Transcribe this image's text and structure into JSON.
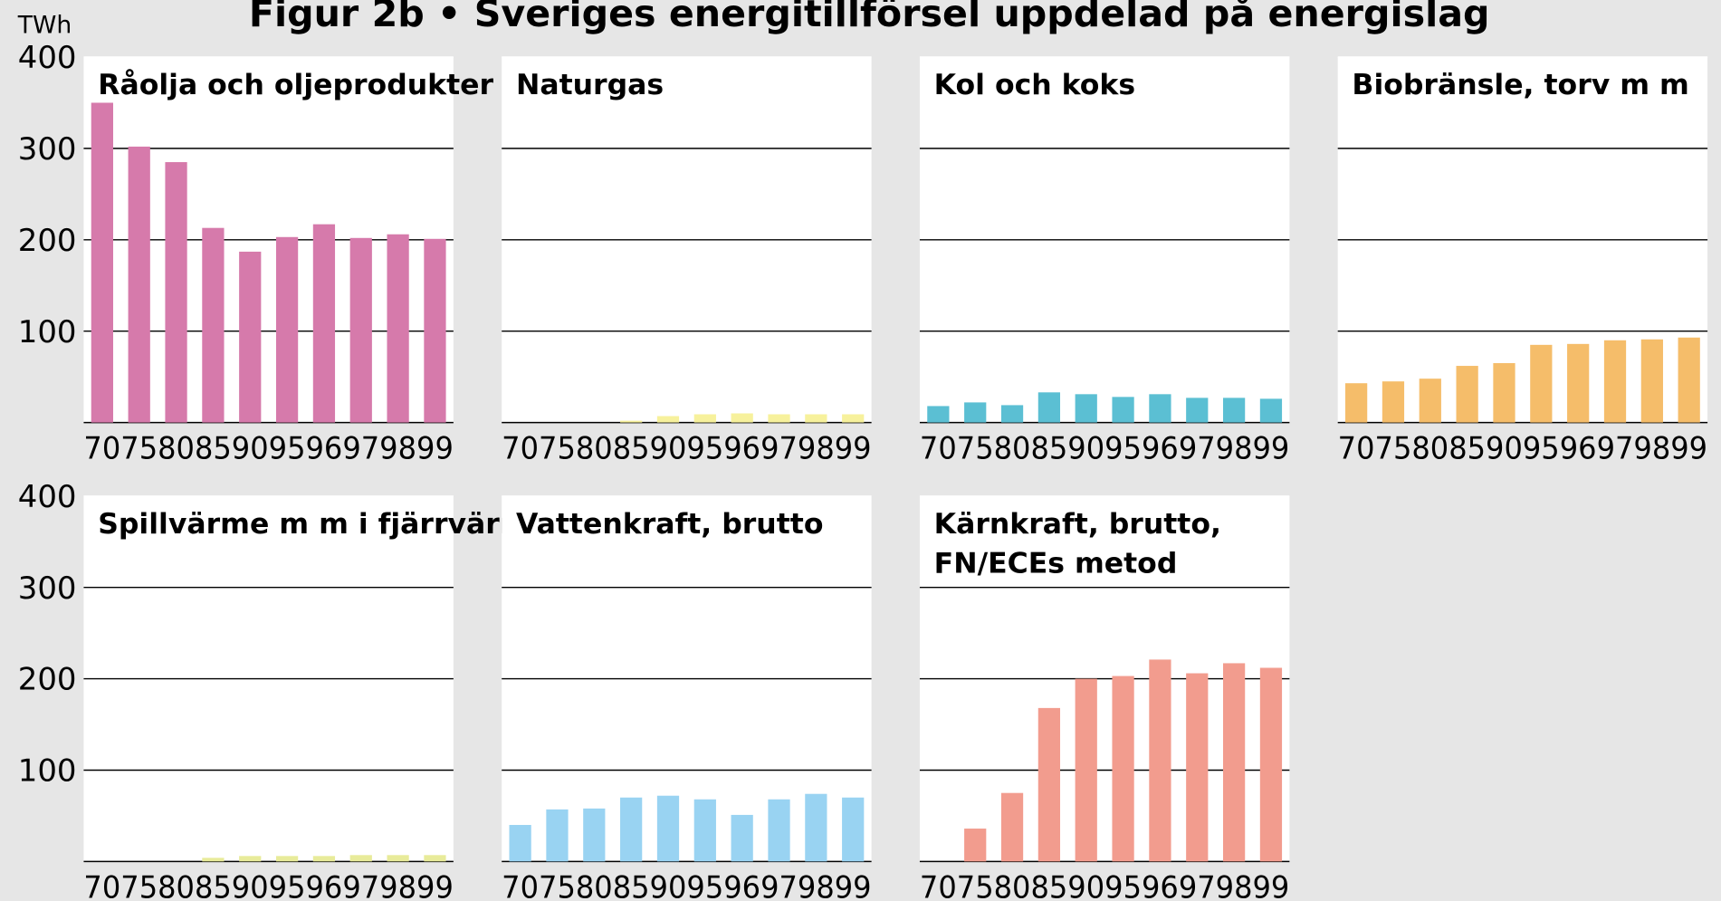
{
  "title": "Figur 2b • Sveriges energitillförsel uppdelad på energislag",
  "unit": "TWh",
  "chart_data": [
    {
      "type": "bar",
      "title": "Råolja och oljeprodukter",
      "categories": [
        "70",
        "75",
        "80",
        "85",
        "90",
        "95",
        "96",
        "97",
        "98",
        "99"
      ],
      "values": [
        350,
        302,
        285,
        213,
        187,
        203,
        217,
        202,
        206,
        201
      ],
      "color": "#d67aab",
      "ylim": [
        0,
        400
      ],
      "yticks": [
        100,
        200,
        300,
        400
      ],
      "grid": true,
      "ytick_labels": true
    },
    {
      "type": "bar",
      "title": "Naturgas",
      "categories": [
        "70",
        "75",
        "80",
        "85",
        "90",
        "95",
        "96",
        "97",
        "98",
        "99"
      ],
      "values": [
        0,
        0,
        0,
        2,
        7,
        9,
        10,
        9,
        9,
        9
      ],
      "color": "#f7f19c",
      "ylim": [
        0,
        400
      ],
      "yticks": [
        100,
        200,
        300,
        400
      ],
      "grid": true,
      "ytick_labels": false
    },
    {
      "type": "bar",
      "title": "Kol och koks",
      "categories": [
        "70",
        "75",
        "80",
        "85",
        "90",
        "95",
        "96",
        "97",
        "98",
        "99"
      ],
      "values": [
        18,
        22,
        19,
        33,
        31,
        28,
        31,
        27,
        27,
        26
      ],
      "color": "#5bbfd3",
      "ylim": [
        0,
        400
      ],
      "yticks": [
        100,
        200,
        300,
        400
      ],
      "grid": true,
      "ytick_labels": false
    },
    {
      "type": "bar",
      "title": "Biobränsle, torv m m",
      "categories": [
        "70",
        "75",
        "80",
        "85",
        "90",
        "95",
        "96",
        "97",
        "98",
        "99"
      ],
      "values": [
        43,
        45,
        48,
        62,
        65,
        85,
        86,
        90,
        91,
        93
      ],
      "color": "#f5bd6a",
      "ylim": [
        0,
        400
      ],
      "yticks": [
        100,
        200,
        300,
        400
      ],
      "grid": true,
      "ytick_labels": false
    },
    {
      "type": "bar",
      "title": "Spillvärme m m i fjärrvärme",
      "categories": [
        "70",
        "75",
        "80",
        "85",
        "90",
        "95",
        "96",
        "97",
        "98",
        "99"
      ],
      "values": [
        0,
        0,
        0,
        4,
        6,
        6,
        6,
        7,
        7,
        7
      ],
      "color": "#e8eb9a",
      "ylim": [
        0,
        400
      ],
      "yticks": [
        100,
        200,
        300,
        400
      ],
      "grid": true,
      "ytick_labels": true
    },
    {
      "type": "bar",
      "title": "Vattenkraft, brutto",
      "categories": [
        "70",
        "75",
        "80",
        "85",
        "90",
        "95",
        "96",
        "97",
        "98",
        "99"
      ],
      "values": [
        40,
        57,
        58,
        70,
        72,
        68,
        51,
        68,
        74,
        70
      ],
      "color": "#99d3f2",
      "ylim": [
        0,
        400
      ],
      "yticks": [
        100,
        200,
        300,
        400
      ],
      "grid": true,
      "ytick_labels": false
    },
    {
      "type": "bar",
      "title": [
        "Kärnkraft, brutto,",
        "FN/ECEs metod"
      ],
      "categories": [
        "70",
        "75",
        "80",
        "85",
        "90",
        "95",
        "96",
        "97",
        "98",
        "99"
      ],
      "values": [
        0,
        36,
        75,
        168,
        200,
        203,
        221,
        206,
        217,
        212
      ],
      "color": "#f29c8e",
      "ylim": [
        0,
        400
      ],
      "yticks": [
        100,
        200,
        300,
        400
      ],
      "grid": true,
      "ytick_labels": false
    }
  ]
}
